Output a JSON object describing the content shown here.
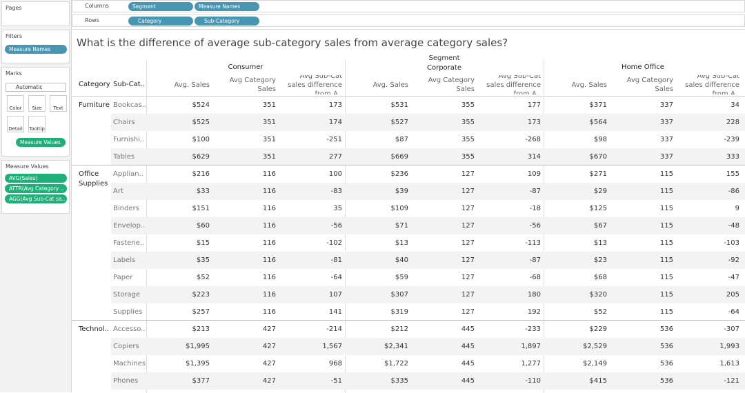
{
  "sidebar": {
    "pages": "Pages",
    "filters": {
      "title": "Filters",
      "pills": [
        "Measure Names"
      ]
    },
    "marks": {
      "title": "Marks",
      "dropdown": "Automatic",
      "buttons": [
        "Color",
        "Size",
        "Text",
        "Detail",
        "Tooltip"
      ],
      "pill": "Measure Values"
    },
    "measure_values": {
      "title": "Measure Values",
      "pills": [
        "AVG(Sales)",
        "ATTR(Avg Category ..",
        "AGG(Avg Sub-Cat sa.."
      ]
    }
  },
  "shelves": {
    "columns": {
      "label": "Columns",
      "pills": [
        "Segment",
        "Measure Names"
      ]
    },
    "rows": {
      "label": "Rows",
      "pills": [
        "Category",
        "Sub-Category"
      ]
    }
  },
  "view": {
    "title": "What is the difference of average sub-category sales from average category sales?",
    "segment_header": "Segment",
    "segments": [
      "Consumer",
      "Corporate",
      "Home Office"
    ],
    "row_headers": [
      "Category",
      "Sub-Cat.."
    ],
    "measure_headers": [
      "Avg. Sales",
      "Avg Category Sales",
      "Avg Sub-Cat sales difference from A.."
    ],
    "groups": [
      {
        "category": "Furniture",
        "rows": [
          {
            "sub": "Bookcas..",
            "cells": [
              "$524",
              "351",
              "173",
              "$531",
              "355",
              "177",
              "$371",
              "337",
              "34"
            ]
          },
          {
            "sub": "Chairs",
            "cells": [
              "$525",
              "351",
              "174",
              "$527",
              "355",
              "173",
              "$564",
              "337",
              "228"
            ]
          },
          {
            "sub": "Furnishi..",
            "cells": [
              "$100",
              "351",
              "-251",
              "$87",
              "355",
              "-268",
              "$98",
              "337",
              "-239"
            ]
          },
          {
            "sub": "Tables",
            "cells": [
              "$629",
              "351",
              "277",
              "$669",
              "355",
              "314",
              "$670",
              "337",
              "333"
            ]
          }
        ]
      },
      {
        "category": "Office Supplies",
        "rows": [
          {
            "sub": "Applian..",
            "cells": [
              "$216",
              "116",
              "100",
              "$236",
              "127",
              "109",
              "$271",
              "115",
              "155"
            ]
          },
          {
            "sub": "Art",
            "cells": [
              "$33",
              "116",
              "-83",
              "$39",
              "127",
              "-87",
              "$29",
              "115",
              "-86"
            ]
          },
          {
            "sub": "Binders",
            "cells": [
              "$151",
              "116",
              "35",
              "$109",
              "127",
              "-18",
              "$125",
              "115",
              "9"
            ]
          },
          {
            "sub": "Envelop..",
            "cells": [
              "$60",
              "116",
              "-56",
              "$71",
              "127",
              "-56",
              "$67",
              "115",
              "-48"
            ]
          },
          {
            "sub": "Fastene..",
            "cells": [
              "$15",
              "116",
              "-102",
              "$13",
              "127",
              "-113",
              "$13",
              "115",
              "-103"
            ]
          },
          {
            "sub": "Labels",
            "cells": [
              "$35",
              "116",
              "-81",
              "$40",
              "127",
              "-87",
              "$23",
              "115",
              "-92"
            ]
          },
          {
            "sub": "Paper",
            "cells": [
              "$52",
              "116",
              "-64",
              "$59",
              "127",
              "-68",
              "$68",
              "115",
              "-47"
            ]
          },
          {
            "sub": "Storage",
            "cells": [
              "$223",
              "116",
              "107",
              "$307",
              "127",
              "180",
              "$320",
              "115",
              "205"
            ]
          },
          {
            "sub": "Supplies",
            "cells": [
              "$257",
              "116",
              "141",
              "$319",
              "127",
              "192",
              "$52",
              "115",
              "-64"
            ]
          }
        ]
      },
      {
        "category": "Technol..",
        "rows": [
          {
            "sub": "Accesso..",
            "cells": [
              "$213",
              "427",
              "-214",
              "$212",
              "445",
              "-233",
              "$229",
              "536",
              "-307"
            ]
          },
          {
            "sub": "Copiers",
            "cells": [
              "$1,995",
              "427",
              "1,567",
              "$2,341",
              "445",
              "1,897",
              "$2,529",
              "536",
              "1,993"
            ]
          },
          {
            "sub": "Machines",
            "cells": [
              "$1,395",
              "427",
              "968",
              "$1,722",
              "445",
              "1,277",
              "$2,149",
              "536",
              "1,613"
            ]
          },
          {
            "sub": "Phones",
            "cells": [
              "$377",
              "427",
              "-51",
              "$335",
              "445",
              "-110",
              "$415",
              "536",
              "-121"
            ]
          }
        ]
      }
    ]
  }
}
